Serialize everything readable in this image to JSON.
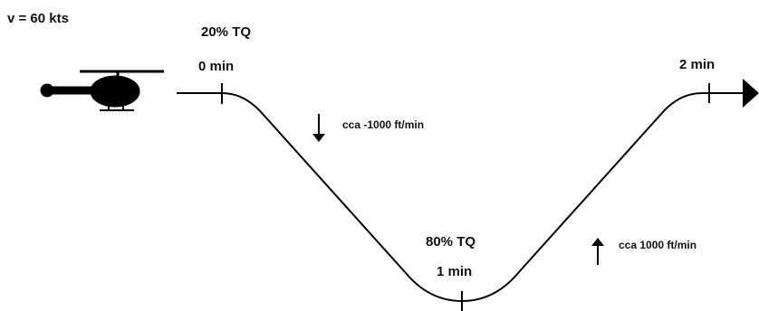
{
  "speed_label": "v = 60 kts",
  "points": [
    {
      "torque": "20% TQ",
      "time": "0 min"
    },
    {
      "torque": "80% TQ",
      "time": "1 min"
    },
    {
      "time": "2 min"
    }
  ],
  "rates": {
    "descent": "cca -1000 ft/min",
    "climb": "cca 1000 ft/min"
  }
}
